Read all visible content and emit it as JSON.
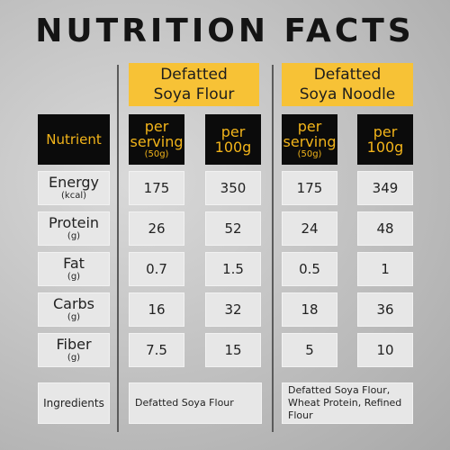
{
  "title": "NUTRITION FACTS",
  "products": [
    {
      "line1": "Defatted",
      "line2": "Soya Flour"
    },
    {
      "line1": "Defatted",
      "line2": "Soya Noodle"
    }
  ],
  "header": {
    "nutrient_label": "Nutrient",
    "per_serving_line1": "per",
    "per_serving_line2": "serving",
    "per_serving_sub": "(50g)",
    "per100_line1": "per",
    "per100_line2": "100g"
  },
  "rows": [
    {
      "name": "Energy",
      "unit": "(kcal)",
      "flour_serving": "175",
      "flour_100g": "350",
      "noodle_serving": "175",
      "noodle_100g": "349"
    },
    {
      "name": "Protein",
      "unit": "(g)",
      "flour_serving": "26",
      "flour_100g": "52",
      "noodle_serving": "24",
      "noodle_100g": "48"
    },
    {
      "name": "Fat",
      "unit": "(g)",
      "flour_serving": "0.7",
      "flour_100g": "1.5",
      "noodle_serving": "0.5",
      "noodle_100g": "1"
    },
    {
      "name": "Carbs",
      "unit": "(g)",
      "flour_serving": "16",
      "flour_100g": "32",
      "noodle_serving": "18",
      "noodle_100g": "36"
    },
    {
      "name": "Fiber",
      "unit": "(g)",
      "flour_serving": "7.5",
      "flour_100g": "15",
      "noodle_serving": "5",
      "noodle_100g": "10"
    }
  ],
  "ingredients": {
    "label": "Ingredients",
    "flour": "Defatted Soya Flour",
    "noodle_line1": "Defatted Soya Flour,",
    "noodle_line2": "Wheat Protein, Refined",
    "noodle_line3": "Flour"
  },
  "colors": {
    "accent_yellow": "#f7c236",
    "header_dark": "#0b0b0b",
    "header_text": "#f2b41a"
  }
}
